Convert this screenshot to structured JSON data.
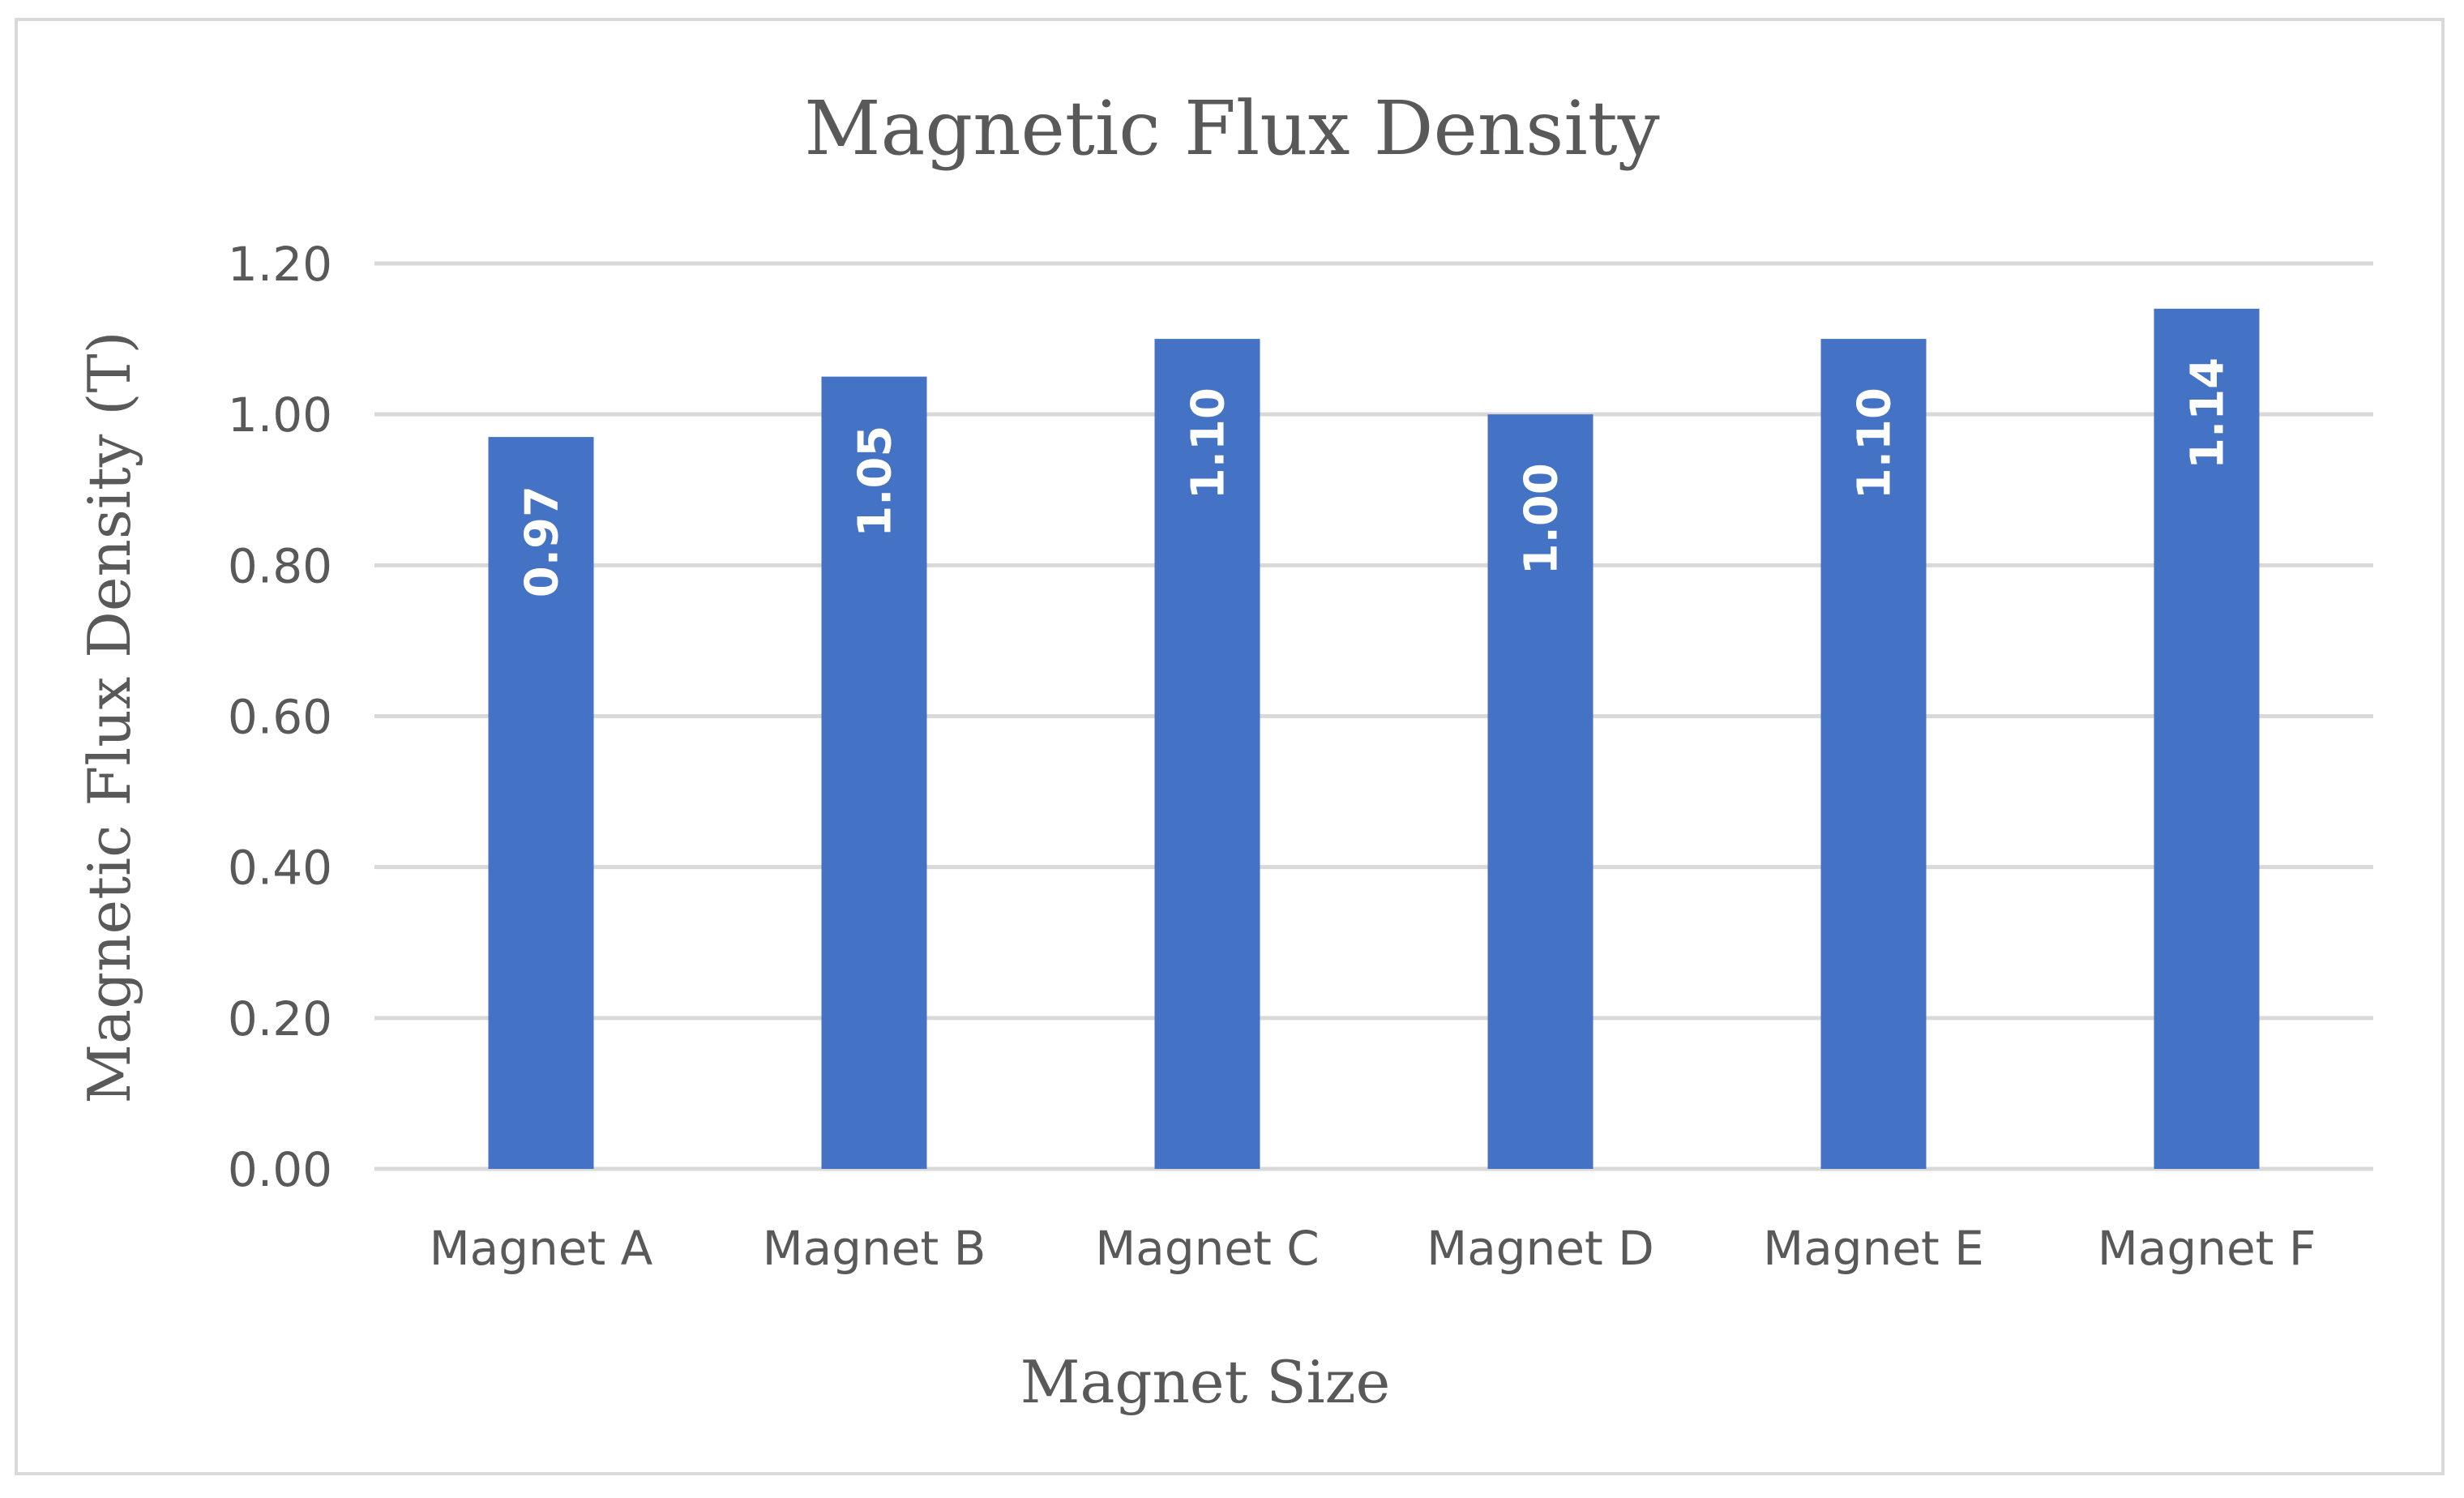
{
  "chart_data": {
    "type": "bar",
    "title": "Magnetic Flux Density",
    "xlabel": "Magnet Size",
    "ylabel": "Magnetic Flux Density (T)",
    "categories": [
      "Magnet A",
      "Magnet B",
      "Magnet C",
      "Magnet D",
      "Magnet E",
      "Magnet F"
    ],
    "values": [
      0.97,
      1.05,
      1.1,
      1.0,
      1.1,
      1.14
    ],
    "value_labels": [
      "0.97",
      "1.05",
      "1.10",
      "1.00",
      "1.10",
      "1.14"
    ],
    "ylim": [
      0,
      1.2
    ],
    "y_ticks": [
      "0.00",
      "0.20",
      "0.40",
      "0.60",
      "0.80",
      "1.00",
      "1.20"
    ],
    "grid": true,
    "legend": "none",
    "colors": {
      "bar": "#4472c4",
      "gridline": "#d9d9d9",
      "text": "#595959",
      "frame": "#d9d9d9",
      "value_label": "#ffffff"
    }
  }
}
